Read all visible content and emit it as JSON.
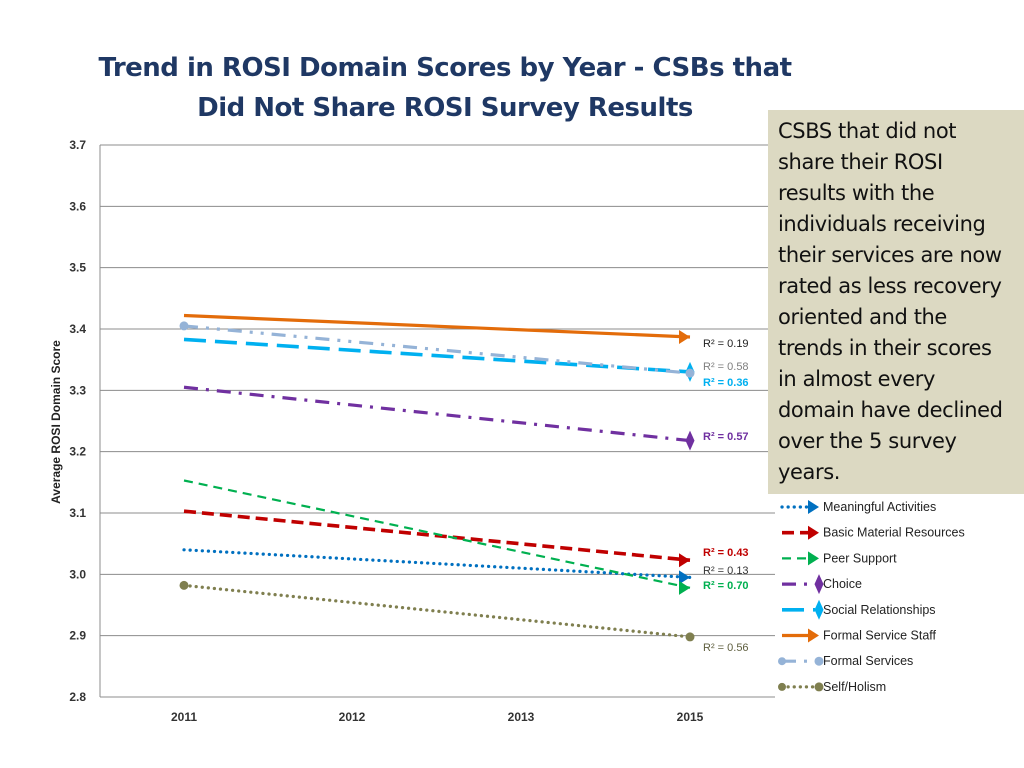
{
  "chart_data": {
    "type": "line",
    "title_line1": "Trend in ROSI Domain Scores by Year - CSBs that",
    "title_line2": "Did Not Share ROSI Survey Results",
    "ylabel": "Average ROSI Domain Score",
    "xlabel": "",
    "ylim": [
      2.8,
      3.7
    ],
    "yticks": [
      "3.7",
      "3.6",
      "3.5",
      "3.4",
      "3.3",
      "3.2",
      "3.1",
      "3.0",
      "2.9",
      "2.8"
    ],
    "categories": [
      "2011",
      "2012",
      "2013",
      "2015"
    ],
    "grid": true,
    "legend_position": "right",
    "series": [
      {
        "name": "Meaningful Activities",
        "color": "#0070c0",
        "style": "dotted",
        "marker": "arrow-right",
        "start": 3.04,
        "end": 2.995,
        "r2": "R² = 0.13",
        "r2_color": "#333333"
      },
      {
        "name": "Basic Material Resources",
        "color": "#c00000",
        "style": "dashed",
        "marker": "arrow-right",
        "start": 3.103,
        "end": 3.023,
        "r2": "R² = 0.43",
        "r2_color": "#c00000"
      },
      {
        "name": "Peer Support",
        "color": "#00b050",
        "style": "dashed-thin",
        "marker": "arrow-right",
        "start": 3.153,
        "end": 2.978,
        "r2": "R² = 0.70",
        "r2_color": "#00b050"
      },
      {
        "name": "Choice",
        "color": "#7030a0",
        "style": "dashdot",
        "marker": "diamond",
        "start": 3.305,
        "end": 3.218,
        "r2": "R² = 0.57",
        "r2_color": "#7030a0"
      },
      {
        "name": "Social Relationships",
        "color": "#00b0f0",
        "style": "longdash",
        "marker": "diamond",
        "start": 3.383,
        "end": 3.33,
        "r2": "R² = 0.36",
        "r2_color": "#00b0f0"
      },
      {
        "name": "Formal Service Staff",
        "color": "#e36c0a",
        "style": "solid",
        "marker": "arrow-right",
        "start": 3.422,
        "end": 3.387,
        "r2": "R² = 0.19",
        "r2_color": "#222222"
      },
      {
        "name": "Formal  Services",
        "color": "#95b3d7",
        "style": "dashdotdot",
        "marker": "circle",
        "start": 3.405,
        "end": 3.328,
        "r2": "R² = 0.58",
        "r2_color": "#7f7f7f"
      },
      {
        "name": "Self/Holism",
        "color": "#7f7f4f",
        "style": "dotted",
        "marker": "circle",
        "start": 2.982,
        "end": 2.898,
        "r2": "R² = 0.56",
        "r2_color": "#5f5f3f"
      }
    ]
  },
  "callout": {
    "text": "CSBS that did not share their ROSI results with the individuals receiving their services are now rated as less recovery oriented and the trends in their scores in almost every domain have declined over the 5 survey years."
  }
}
